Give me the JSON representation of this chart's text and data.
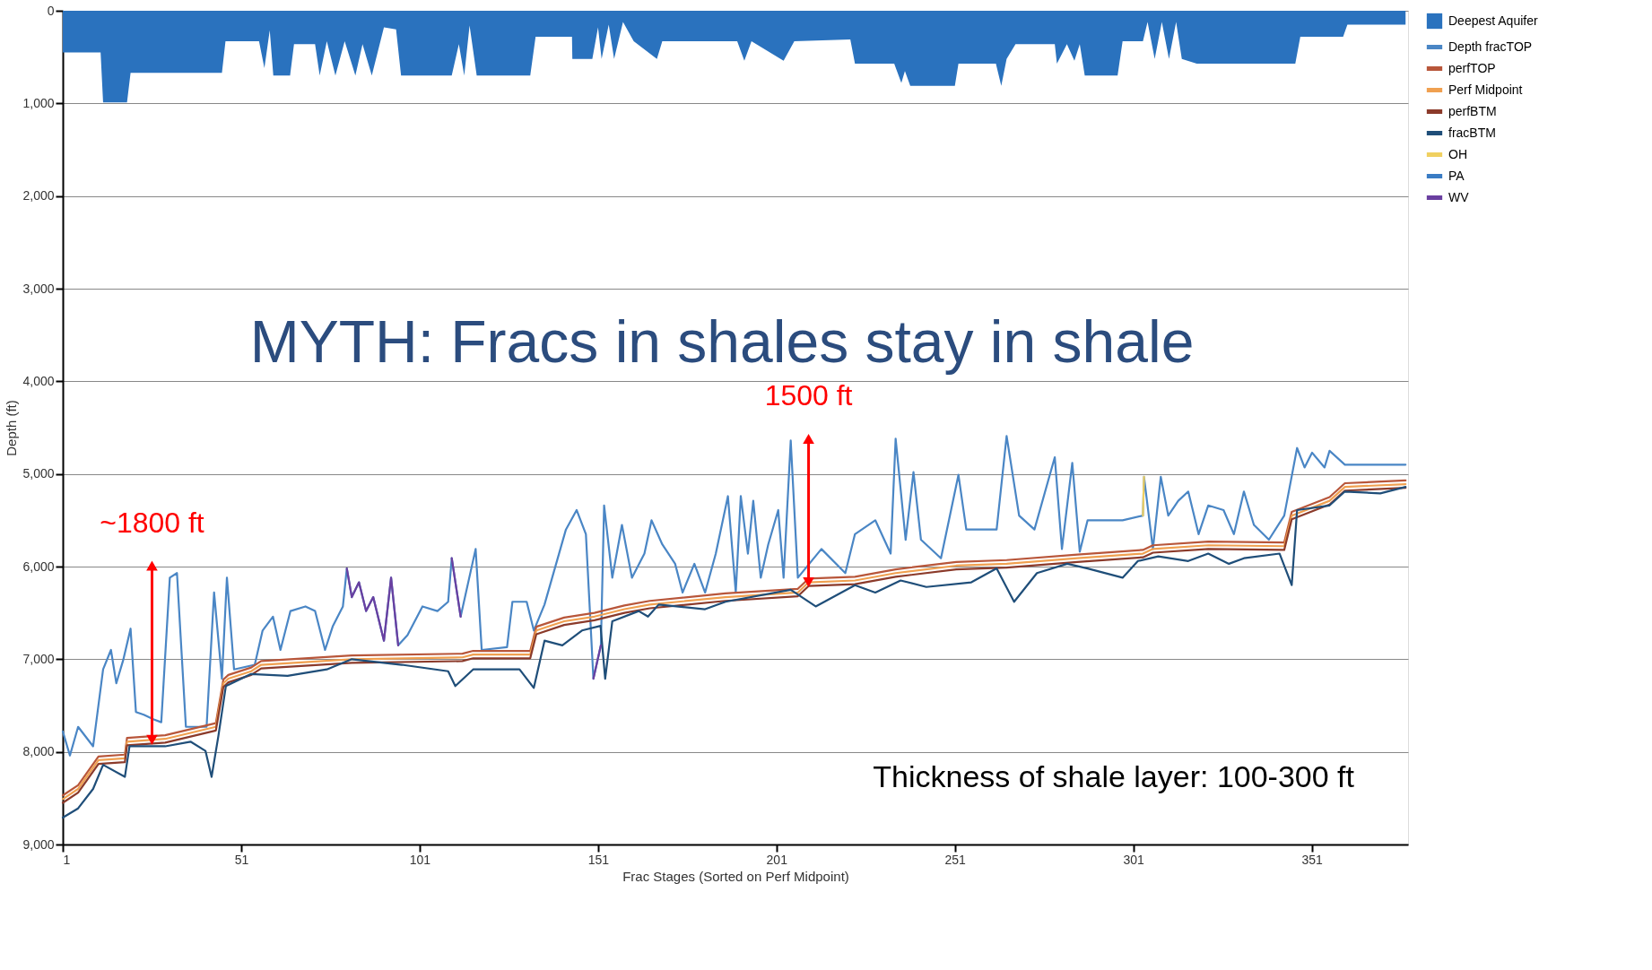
{
  "chart_data": {
    "type": "line",
    "title": "MYTH: Fracs in shales stay in shale",
    "xlabel": "Frac Stages (Sorted on Perf Midpoint)",
    "ylabel": "Depth (ft)",
    "xlim": [
      1,
      378
    ],
    "xticks": [
      1,
      51,
      101,
      151,
      201,
      251,
      301,
      351
    ],
    "ylim": [
      9000,
      0
    ],
    "yticks": [
      0,
      {
        "value": 1000,
        "label": "1,000"
      },
      {
        "value": 2000,
        "label": "2,000"
      },
      {
        "value": 3000,
        "label": "3,000"
      },
      {
        "value": 4000,
        "label": "4,000"
      },
      {
        "value": 5000,
        "label": "5,000"
      },
      {
        "value": 6000,
        "label": "6,000"
      },
      {
        "value": 7000,
        "label": "7,000"
      },
      {
        "value": 8000,
        "label": "8,000"
      },
      {
        "value": 9000,
        "label": "9,000"
      }
    ],
    "grid": "y",
    "legend": "right",
    "annotations": [
      {
        "text": "~1800 ft",
        "x": 26,
        "y": 5990
      },
      {
        "text": "1500 ft",
        "x": 210,
        "y": 4620
      },
      "Thickness of shale layer: 100-300 ft"
    ],
    "series": [
      {
        "name": "Deepest Aquifer",
        "type": "area",
        "color": "#2a72be",
        "x": [
          1,
          11.6,
          12.3,
          19,
          20,
          45.6,
          46.6,
          56,
          57.5,
          59,
          60,
          64.7,
          65.8,
          71.7,
          73,
          75,
          77.4,
          80,
          83,
          85,
          87.6,
          91,
          94.4,
          95.8,
          110,
          112,
          113.5,
          115,
          117,
          132,
          133.5,
          143.7,
          143.8,
          149.4,
          151,
          152,
          154,
          155.5,
          158,
          161,
          167.5,
          169,
          190,
          192,
          194,
          203,
          206,
          221.7,
          223,
          234,
          236,
          237,
          238.5,
          251,
          252,
          262.5,
          264,
          265.5,
          268,
          279,
          279.6,
          282.4,
          284.5,
          286,
          287.4,
          296.6,
          298,
          303.7,
          305,
          307,
          309,
          311,
          313,
          314.6,
          318.8,
          346.4,
          347.8,
          359.8,
          361,
          377.3
        ],
        "values": [
          450,
          450,
          990,
          990,
          670,
          670,
          330,
          330,
          620,
          210,
          700,
          700,
          360,
          360,
          700,
          330,
          700,
          330,
          700,
          360,
          700,
          180,
          200,
          700,
          700,
          360,
          700,
          160,
          700,
          700,
          280,
          280,
          520,
          520,
          180,
          520,
          150,
          520,
          120,
          330,
          520,
          330,
          330,
          540,
          330,
          540,
          330,
          310,
          570,
          570,
          780,
          650,
          810,
          810,
          570,
          570,
          810,
          520,
          360,
          360,
          570,
          360,
          540,
          360,
          700,
          700,
          330,
          330,
          120,
          520,
          120,
          520,
          120,
          520,
          570,
          570,
          280,
          280,
          150,
          150
        ]
      },
      {
        "name": "Depth fracTOP",
        "color": "#4a86c5",
        "x": [
          1,
          3,
          5.3,
          9.5,
          12.3,
          14.5,
          16,
          18,
          20,
          21.5,
          23.7,
          26.5,
          28.6,
          31,
          33,
          35.5,
          41.3,
          43.4,
          45.6,
          47,
          49,
          54.8,
          57,
          59.9,
          62,
          64.8,
          69,
          71.7,
          74.5,
          76.7,
          79.5,
          80.6,
          82,
          84,
          86,
          88,
          91,
          93,
          95,
          97.6,
          101.8,
          106,
          109,
          110,
          112.5,
          116.7,
          118.4,
          125.5,
          127,
          131,
          133,
          136,
          142,
          145,
          147.6,
          149.7,
          151.8,
          152.7,
          155,
          157.7,
          160.5,
          164,
          166,
          169,
          172.6,
          174.7,
          178,
          181,
          184,
          187.4,
          189.6,
          191,
          193,
          194.5,
          196.6,
          198.7,
          201.5,
          203,
          205,
          207,
          213.6,
          220.3,
          223,
          228.7,
          233,
          234.4,
          237.2,
          239.4,
          241.5,
          247.1,
          252,
          254.2,
          262.7,
          265.5,
          269,
          273.3,
          279,
          281,
          283.9,
          286,
          288.2,
          298,
          303.7,
          304,
          306.5,
          308.7,
          310.8,
          313.6,
          316.4,
          319.3,
          322,
          326.3,
          329.2,
          332,
          334.8,
          339,
          343.3,
          346.9,
          349,
          351.1,
          354.6,
          356,
          360.3,
          370.2,
          377.3
        ],
        "values": [
          7780,
          8040,
          7730,
          7940,
          7110,
          6900,
          7260,
          7000,
          6670,
          7570,
          7600,
          7650,
          7680,
          6120,
          6070,
          7730,
          7730,
          6280,
          7210,
          6120,
          7110,
          7060,
          6690,
          6540,
          6900,
          6480,
          6430,
          6480,
          6900,
          6640,
          6430,
          6020,
          6330,
          6170,
          6480,
          6330,
          6800,
          6120,
          6850,
          6740,
          6430,
          6480,
          6380,
          5910,
          6540,
          5810,
          6900,
          6870,
          6380,
          6380,
          6690,
          6410,
          5600,
          5390,
          5650,
          7210,
          6850,
          5340,
          6120,
          5550,
          6120,
          5860,
          5500,
          5760,
          5970,
          6280,
          5970,
          6280,
          5860,
          5240,
          6280,
          5240,
          5860,
          5290,
          6120,
          5760,
          5390,
          6120,
          4640,
          6120,
          5810,
          6070,
          5650,
          5500,
          5860,
          4620,
          5710,
          4980,
          5710,
          5910,
          5010,
          5600,
          5600,
          4590,
          5450,
          5600,
          4820,
          5810,
          4880,
          5840,
          5500,
          5500,
          5450,
          5030,
          5810,
          5030,
          5450,
          5290,
          5190,
          5650,
          5340,
          5390,
          5650,
          5190,
          5550,
          5710,
          5450,
          4720,
          4930,
          4770,
          4930,
          4750,
          4900,
          4900,
          4900
        ]
      },
      {
        "name": "perfTOP",
        "color": "#b8563a",
        "x": [
          1,
          5.3,
          11,
          18.4,
          19,
          29.7,
          43.9,
          46,
          47.4,
          53.8,
          56.6,
          82,
          113,
          116,
          132,
          133.7,
          141.5,
          150,
          158.4,
          165.5,
          186.7,
          207,
          210,
          223,
          234.4,
          251.4,
          265.5,
          285.3,
          303.7,
          306.5,
          322,
          343.3,
          345.4,
          356,
          360.3,
          377.3
        ],
        "values": [
          8470,
          8360,
          8050,
          8030,
          7850,
          7820,
          7690,
          7220,
          7170,
          7090,
          7020,
          6960,
          6940,
          6910,
          6910,
          6650,
          6550,
          6500,
          6420,
          6370,
          6290,
          6240,
          6130,
          6110,
          6030,
          5950,
          5930,
          5870,
          5820,
          5770,
          5730,
          5740,
          5410,
          5250,
          5100,
          5070
        ]
      },
      {
        "name": "Perf Midpoint",
        "color": "#f0a050",
        "x": [
          1,
          5.3,
          11,
          18.4,
          19,
          29.7,
          43.9,
          46,
          47.4,
          53.8,
          56.6,
          82,
          113,
          116,
          132,
          133.7,
          141.5,
          150,
          158.4,
          165.5,
          186.7,
          207,
          210,
          223,
          234.4,
          251.4,
          265.5,
          285.3,
          303.7,
          306.5,
          322,
          343.3,
          345.4,
          356,
          360.3,
          377.3
        ],
        "values": [
          8510,
          8400,
          8090,
          8070,
          7890,
          7860,
          7730,
          7260,
          7210,
          7130,
          7060,
          7000,
          6980,
          6950,
          6950,
          6690,
          6590,
          6540,
          6460,
          6410,
          6330,
          6280,
          6170,
          6150,
          6070,
          5990,
          5970,
          5910,
          5860,
          5810,
          5770,
          5780,
          5450,
          5290,
          5140,
          5110
        ]
      },
      {
        "name": "perfBTM",
        "color": "#8b3a2a",
        "x": [
          1,
          5.3,
          11,
          18.4,
          19,
          29.7,
          43.9,
          46,
          47.4,
          53.8,
          56.6,
          82,
          113,
          116,
          132,
          133.7,
          141.5,
          150,
          158.4,
          165.5,
          186.7,
          207,
          210,
          223,
          234.4,
          251.4,
          265.5,
          285.3,
          303.7,
          306.5,
          322,
          343.3,
          345.4,
          356,
          360.3,
          377.3
        ],
        "values": [
          8550,
          8440,
          8130,
          8110,
          7930,
          7900,
          7770,
          7300,
          7250,
          7170,
          7100,
          7040,
          7020,
          6990,
          6990,
          6730,
          6630,
          6580,
          6500,
          6450,
          6370,
          6320,
          6210,
          6190,
          6110,
          6030,
          6010,
          5950,
          5900,
          5850,
          5810,
          5820,
          5490,
          5330,
          5180,
          5150
        ]
      },
      {
        "name": "fracBTM",
        "color": "#1f4e79",
        "x": [
          1,
          5.3,
          9.5,
          12.3,
          18.4,
          19.7,
          29.7,
          36.8,
          41,
          42.7,
          44.6,
          46.7,
          53.8,
          64,
          75,
          82,
          96,
          109,
          111,
          116,
          129,
          133,
          136,
          141,
          146.5,
          151.7,
          153,
          155,
          162.4,
          165,
          168,
          181,
          186.7,
          205,
          212,
          223,
          228.7,
          235.8,
          243,
          255.6,
          262.7,
          267.6,
          274,
          282.5,
          288.2,
          298,
          302.3,
          308,
          316.4,
          322,
          327.8,
          332,
          342,
          345.4,
          346.9,
          356,
          360.3,
          370.2,
          377.3
        ],
        "values": [
          8710,
          8610,
          8400,
          8140,
          8270,
          7940,
          7940,
          7890,
          7990,
          8270,
          7830,
          7290,
          7160,
          7180,
          7110,
          7000,
          7060,
          7130,
          7290,
          7110,
          7110,
          7310,
          6800,
          6850,
          6690,
          6640,
          7210,
          6590,
          6480,
          6540,
          6410,
          6460,
          6380,
          6250,
          6430,
          6200,
          6280,
          6150,
          6220,
          6170,
          6020,
          6380,
          6070,
          5970,
          6020,
          6120,
          5940,
          5890,
          5940,
          5860,
          5970,
          5910,
          5860,
          6200,
          5390,
          5340,
          5190,
          5210,
          5140
        ]
      },
      {
        "name": "OH",
        "color": "#f0d060",
        "x": [
          303.7,
          304
        ],
        "values": [
          5450,
          5030
        ]
      },
      {
        "name": "PA",
        "color": "#3a7cc4"
      },
      {
        "name": "WV",
        "color": "#6a3fa0",
        "x": [
          80.6,
          82,
          84,
          86,
          88,
          91,
          93,
          95,
          96,
          110,
          112.5,
          113,
          149.7,
          151.8
        ],
        "values": [
          6020,
          6330,
          6170,
          6480,
          6330,
          6800,
          6120,
          6850,
          null,
          5910,
          6540,
          null,
          7210,
          6850
        ]
      }
    ]
  }
}
